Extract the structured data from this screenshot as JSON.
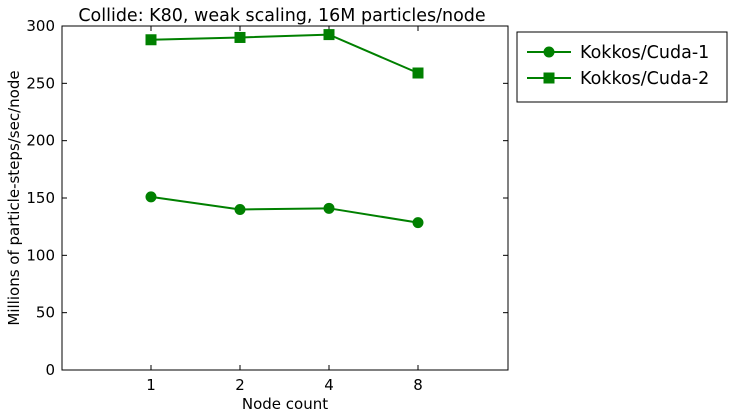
{
  "chart_data": {
    "type": "line",
    "title": "Collide: K80, weak scaling, 16M particles/node",
    "xlabel": "Node count",
    "ylabel": "Millions of particle-steps/sec/node",
    "categories": [
      "1",
      "2",
      "4",
      "8"
    ],
    "ylim": [
      0,
      300
    ],
    "yticks": [
      "0",
      "50",
      "100",
      "150",
      "200",
      "250",
      "300"
    ],
    "grid": false,
    "legend_position": "outside-right",
    "series": [
      {
        "name": "Kokkos/Cuda-1",
        "marker": "circle",
        "color": "#008000",
        "values": [
          151,
          140,
          141,
          128.5
        ]
      },
      {
        "name": "Kokkos/Cuda-2",
        "marker": "square",
        "color": "#008000",
        "values": [
          288,
          290,
          292.5,
          259
        ]
      }
    ]
  }
}
